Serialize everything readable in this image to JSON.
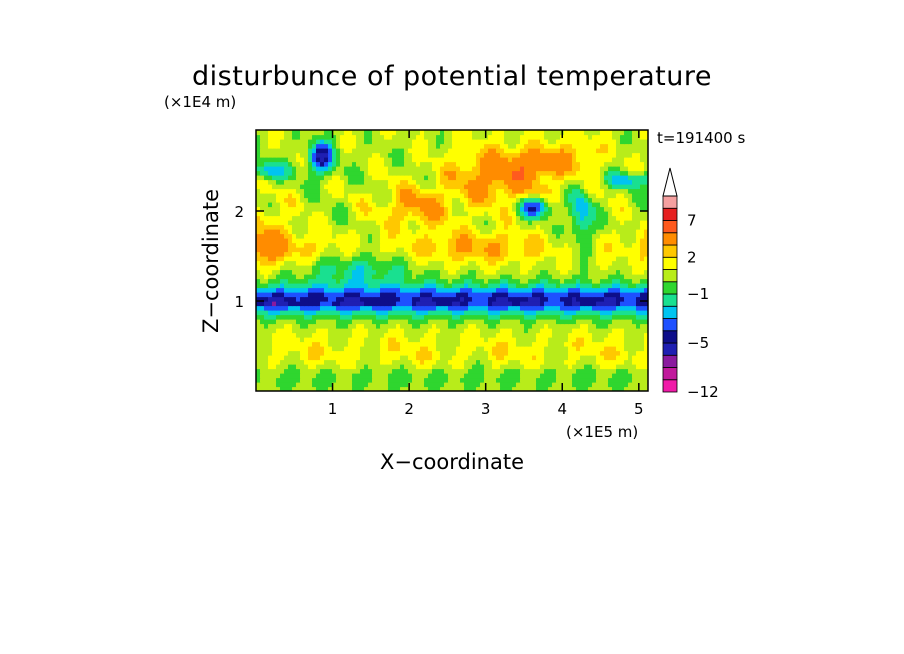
{
  "chart_data": {
    "type": "heatmap",
    "title": "disturbunce of potential temperature",
    "xlabel": "X−coordinate",
    "ylabel": "Z−coordinate",
    "x_unit": "(×1E5 m)",
    "y_unit": "(×1E4 m)",
    "time_label": "t=191400 s",
    "xlim": [
      0,
      5.12
    ],
    "ylim": [
      0,
      2.9
    ],
    "x_ticks": [
      {
        "value": 1,
        "label": "1"
      },
      {
        "value": 2,
        "label": "2"
      },
      {
        "value": 3,
        "label": "3"
      },
      {
        "value": 4,
        "label": "4"
      },
      {
        "value": 5,
        "label": "5"
      }
    ],
    "y_ticks": [
      {
        "value": 1,
        "label": "1"
      },
      {
        "value": 2,
        "label": "2"
      }
    ],
    "colorbar": {
      "levels": [
        -12,
        -10,
        -8,
        -6,
        -5,
        -4,
        -3,
        -2,
        -1,
        0,
        1,
        2,
        3,
        5,
        7,
        9,
        11
      ],
      "colors": [
        "#f01ba8",
        "#c1199c",
        "#8a1a9e",
        "#1f1fb2",
        "#0e0e8a",
        "#1e50ff",
        "#00c4f0",
        "#19e090",
        "#2fd62f",
        "#b8ec1a",
        "#ffff00",
        "#ffc800",
        "#ff8c00",
        "#ff5a1e",
        "#e62020",
        "#f5a0a0"
      ],
      "extend_top_color": "#ffffff",
      "labels": [
        {
          "value": -12,
          "label": "−12"
        },
        {
          "value": -5,
          "label": "−5"
        },
        {
          "value": -1,
          "label": "−1"
        },
        {
          "value": 2,
          "label": "2"
        },
        {
          "value": 7,
          "label": "7"
        }
      ]
    }
  }
}
